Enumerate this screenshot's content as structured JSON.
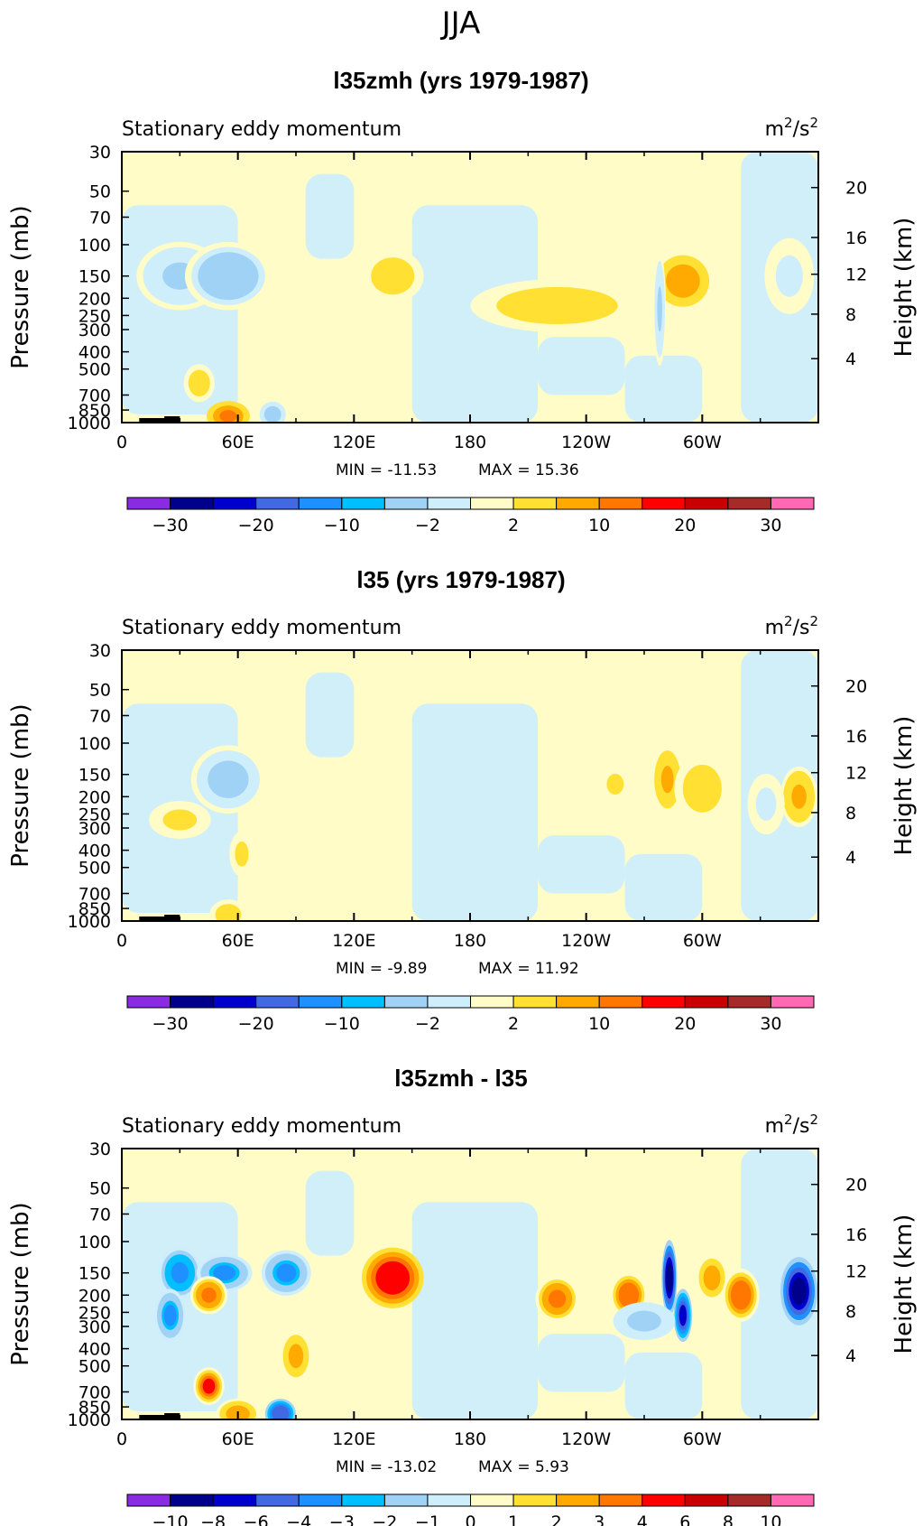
{
  "page_title": "JJA",
  "chart_data": [
    {
      "type": "heatmap",
      "title": "l35zmh (yrs 1979-1987)",
      "subtitle_left": "Stationary eddy momentum",
      "units_base": "m",
      "units_exp1": "2",
      "units_mid": "/s",
      "units_exp2": "2",
      "ylabel": "Pressure (mb)",
      "ylabel_right": "Height (km)",
      "y_ticks": [
        "30",
        "50",
        "70",
        "100",
        "150",
        "200",
        "250",
        "300",
        "400",
        "500",
        "700",
        "850",
        "1000"
      ],
      "y_tick_values": [
        30,
        50,
        70,
        100,
        150,
        200,
        250,
        300,
        400,
        500,
        700,
        850,
        1000
      ],
      "y_right_ticks": [
        "20",
        "16",
        "12",
        "8",
        "4"
      ],
      "x_ticks": [
        "0",
        "60E",
        "120E",
        "180",
        "120W",
        "60W"
      ],
      "x_tick_values": [
        0,
        60,
        120,
        180,
        240,
        300
      ],
      "xlim": [
        0,
        360
      ],
      "ylim": [
        1000,
        30
      ],
      "log_y": true,
      "min_label": "MIN = -11.53",
      "max_label": "MAX = 15.36",
      "colorbar_labels": [
        "−30",
        "−20",
        "−10",
        "−2",
        "2",
        "10",
        "20",
        "30"
      ],
      "colorbar_label_slots": [
        1,
        3,
        5,
        7,
        9,
        11,
        13,
        15
      ],
      "blobs": [
        {
          "lon": 30,
          "p": 150,
          "wx": 14,
          "wy": 0.09,
          "v": -6
        },
        {
          "lon": 55,
          "p": 150,
          "wx": 14,
          "wy": 0.09,
          "v": -9
        },
        {
          "lon": 40,
          "p": 600,
          "wx": 5,
          "wy": 0.05,
          "v": 5
        },
        {
          "lon": 55,
          "p": 920,
          "wx": 7,
          "wy": 0.04,
          "v": 12
        },
        {
          "lon": 78,
          "p": 900,
          "wx": 5,
          "wy": 0.04,
          "v": -8
        },
        {
          "lon": 140,
          "p": 150,
          "wx": 10,
          "wy": 0.07,
          "v": 5
        },
        {
          "lon": 225,
          "p": 220,
          "wx": 28,
          "wy": 0.07,
          "v": 4
        },
        {
          "lon": 290,
          "p": 160,
          "wx": 10,
          "wy": 0.08,
          "v": 7
        },
        {
          "lon": 278,
          "p": 230,
          "wx": 2,
          "wy": 0.15,
          "v": -6
        },
        {
          "lon": 345,
          "p": 150,
          "wx": 8,
          "wy": 0.1,
          "v": -3
        }
      ]
    },
    {
      "type": "heatmap",
      "title": "l35 (yrs 1979-1987)",
      "subtitle_left": "Stationary eddy momentum",
      "units_base": "m",
      "units_exp1": "2",
      "units_mid": "/s",
      "units_exp2": "2",
      "ylabel": "Pressure (mb)",
      "ylabel_right": "Height (km)",
      "y_ticks": [
        "30",
        "50",
        "70",
        "100",
        "150",
        "200",
        "250",
        "300",
        "400",
        "500",
        "700",
        "850",
        "1000"
      ],
      "y_tick_values": [
        30,
        50,
        70,
        100,
        150,
        200,
        250,
        300,
        400,
        500,
        700,
        850,
        1000
      ],
      "y_right_ticks": [
        "20",
        "16",
        "12",
        "8",
        "4"
      ],
      "x_ticks": [
        "0",
        "60E",
        "120E",
        "180",
        "120W",
        "60W"
      ],
      "x_tick_values": [
        0,
        60,
        120,
        180,
        240,
        300
      ],
      "xlim": [
        0,
        360
      ],
      "ylim": [
        1000,
        30
      ],
      "log_y": true,
      "min_label": "MIN =  -9.89",
      "max_label": "MAX =  11.92",
      "colorbar_labels": [
        "−30",
        "−20",
        "−10",
        "−2",
        "2",
        "10",
        "20",
        "30"
      ],
      "colorbar_label_slots": [
        1,
        3,
        5,
        7,
        9,
        11,
        13,
        15
      ],
      "blobs": [
        {
          "lon": 55,
          "p": 160,
          "wx": 12,
          "wy": 0.09,
          "v": -7
        },
        {
          "lon": 30,
          "p": 270,
          "wx": 10,
          "wy": 0.05,
          "v": 3
        },
        {
          "lon": 62,
          "p": 420,
          "wx": 4,
          "wy": 0.06,
          "v": 3
        },
        {
          "lon": 55,
          "p": 920,
          "wx": 6,
          "wy": 0.04,
          "v": 5
        },
        {
          "lon": 255,
          "p": 170,
          "wx": 5,
          "wy": 0.05,
          "v": 3
        },
        {
          "lon": 282,
          "p": 160,
          "wx": 5,
          "wy": 0.09,
          "v": 6
        },
        {
          "lon": 300,
          "p": 180,
          "wx": 9,
          "wy": 0.09,
          "v": 4
        },
        {
          "lon": 350,
          "p": 200,
          "wx": 6,
          "wy": 0.08,
          "v": 6
        },
        {
          "lon": 333,
          "p": 220,
          "wx": 6,
          "wy": 0.08,
          "v": -3
        }
      ]
    },
    {
      "type": "heatmap",
      "title": "l35zmh - l35",
      "subtitle_left": "Stationary eddy momentum",
      "units_base": "m",
      "units_exp1": "2",
      "units_mid": "/s",
      "units_exp2": "2",
      "ylabel": "Pressure (mb)",
      "ylabel_right": "Height (km)",
      "y_ticks": [
        "30",
        "50",
        "70",
        "100",
        "150",
        "200",
        "250",
        "300",
        "400",
        "500",
        "700",
        "850",
        "1000"
      ],
      "y_tick_values": [
        30,
        50,
        70,
        100,
        150,
        200,
        250,
        300,
        400,
        500,
        700,
        850,
        1000
      ],
      "y_right_ticks": [
        "20",
        "16",
        "12",
        "8",
        "4"
      ],
      "x_ticks": [
        "0",
        "60E",
        "120E",
        "180",
        "120W",
        "60W"
      ],
      "x_tick_values": [
        0,
        60,
        120,
        180,
        240,
        300
      ],
      "xlim": [
        0,
        360
      ],
      "ylim": [
        1000,
        30
      ],
      "log_y": true,
      "min_label": "MIN = -13.02",
      "max_label": "MAX =   5.93",
      "colorbar_labels": [
        "−10",
        "−8",
        "−6",
        "−4",
        "−3",
        "−2",
        "−1",
        "0",
        "1",
        "2",
        "3",
        "4",
        "6",
        "8",
        "10"
      ],
      "colorbar_label_slots": [
        1,
        2,
        3,
        4,
        5,
        6,
        7,
        8,
        9,
        10,
        11,
        12,
        13,
        14,
        15
      ],
      "blobs": [
        {
          "lon": 30,
          "p": 150,
          "wx": 7,
          "wy": 0.07,
          "v": -3.5
        },
        {
          "lon": 53,
          "p": 150,
          "wx": 9,
          "wy": 0.05,
          "v": -3
        },
        {
          "lon": 85,
          "p": 150,
          "wx": 8,
          "wy": 0.06,
          "v": -3
        },
        {
          "lon": 45,
          "p": 200,
          "wx": 6,
          "wy": 0.05,
          "v": 3.5
        },
        {
          "lon": 25,
          "p": 260,
          "wx": 5,
          "wy": 0.07,
          "v": -3
        },
        {
          "lon": 45,
          "p": 650,
          "wx": 5,
          "wy": 0.05,
          "v": 5
        },
        {
          "lon": 90,
          "p": 440,
          "wx": 6,
          "wy": 0.08,
          "v": 2.5
        },
        {
          "lon": 82,
          "p": 930,
          "wx": 5,
          "wy": 0.04,
          "v": -5
        },
        {
          "lon": 60,
          "p": 930,
          "wx": 7,
          "wy": 0.04,
          "v": 3
        },
        {
          "lon": 140,
          "p": 160,
          "wx": 10,
          "wy": 0.08,
          "v": 5.5
        },
        {
          "lon": 225,
          "p": 210,
          "wx": 7,
          "wy": 0.06,
          "v": 3.5
        },
        {
          "lon": 262,
          "p": 200,
          "wx": 6,
          "wy": 0.06,
          "v": 4
        },
        {
          "lon": 283,
          "p": 160,
          "wx": 2.5,
          "wy": 0.1,
          "v": -8
        },
        {
          "lon": 290,
          "p": 260,
          "wx": 3,
          "wy": 0.07,
          "v": -6
        },
        {
          "lon": 305,
          "p": 160,
          "wx": 5,
          "wy": 0.06,
          "v": 3
        },
        {
          "lon": 320,
          "p": 200,
          "wx": 6,
          "wy": 0.07,
          "v": 4
        },
        {
          "lon": 350,
          "p": 190,
          "wx": 6,
          "wy": 0.09,
          "v": -9
        },
        {
          "lon": 270,
          "p": 280,
          "wx": 10,
          "wy": 0.05,
          "v": -1.5
        }
      ]
    }
  ],
  "colors": {
    "colorbar": [
      "#8a2be2",
      "#00008b",
      "#0000cd",
      "#4169e1",
      "#1e90ff",
      "#00bfff",
      "#a0d2f5",
      "#cfeefc",
      "#fffcc8",
      "#ffe033",
      "#ffaa00",
      "#ff7700",
      "#ff0000",
      "#c80000",
      "#a52a2a",
      "#ff69b4"
    ]
  }
}
